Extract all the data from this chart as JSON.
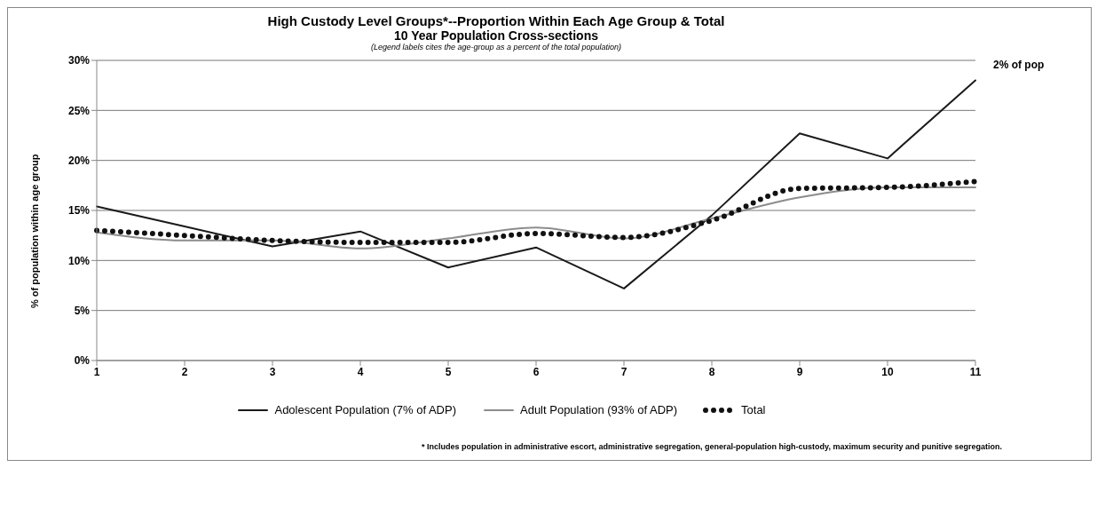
{
  "chart_data": {
    "type": "line",
    "title": "High Custody Level Groups*--Proportion Within Each Age Group & Total",
    "subtitle": "10 Year Population Cross-sections",
    "ylabel": "% of population within age group",
    "annotations": [
      "(Legend labels cites the age-group as a percent of the total population)",
      {
        "text": "2% of pop",
        "x": "11",
        "y": 28
      },
      "* Includes population in administrative escort, administrative segregation, general-population high-custody, maximum security and punitive segregation."
    ],
    "categories": [
      "1",
      "2",
      "3",
      "4",
      "5",
      "6",
      "7",
      "8",
      "9",
      "10",
      "11"
    ],
    "series": [
      {
        "name": "Adolescent Population (7% of ADP)",
        "color": "#1a1a1a",
        "line_style": "solid",
        "values": [
          15.4,
          13.4,
          11.4,
          12.9,
          9.3,
          11.3,
          7.2,
          14.5,
          22.7,
          20.2,
          28
        ]
      },
      {
        "name": "Adult Population (93% of ADP)",
        "color": "#8c8c8c",
        "line_style": "solid",
        "values": [
          12.8,
          12.0,
          12.0,
          11.2,
          12.2,
          13.3,
          12.2,
          14.2,
          16.3,
          17.3,
          17.3
        ]
      },
      {
        "name": "Total",
        "color": "#111111",
        "line_style": "dotted",
        "values": [
          13.0,
          12.5,
          12.0,
          11.8,
          11.8,
          12.7,
          12.3,
          14.0,
          17.2,
          17.3,
          17.9
        ]
      }
    ],
    "ylim": [
      0,
      30
    ],
    "yticks": [
      {
        "value": 0,
        "label": "0%"
      },
      {
        "value": 5,
        "label": "5%"
      },
      {
        "value": 10,
        "label": "10%"
      },
      {
        "value": 15,
        "label": "15%"
      },
      {
        "value": 20,
        "label": "20%"
      },
      {
        "value": 25,
        "label": "25%"
      },
      {
        "value": 30,
        "label": "30%"
      }
    ],
    "grid": "y",
    "legend": "bottom",
    "marker": "none"
  }
}
